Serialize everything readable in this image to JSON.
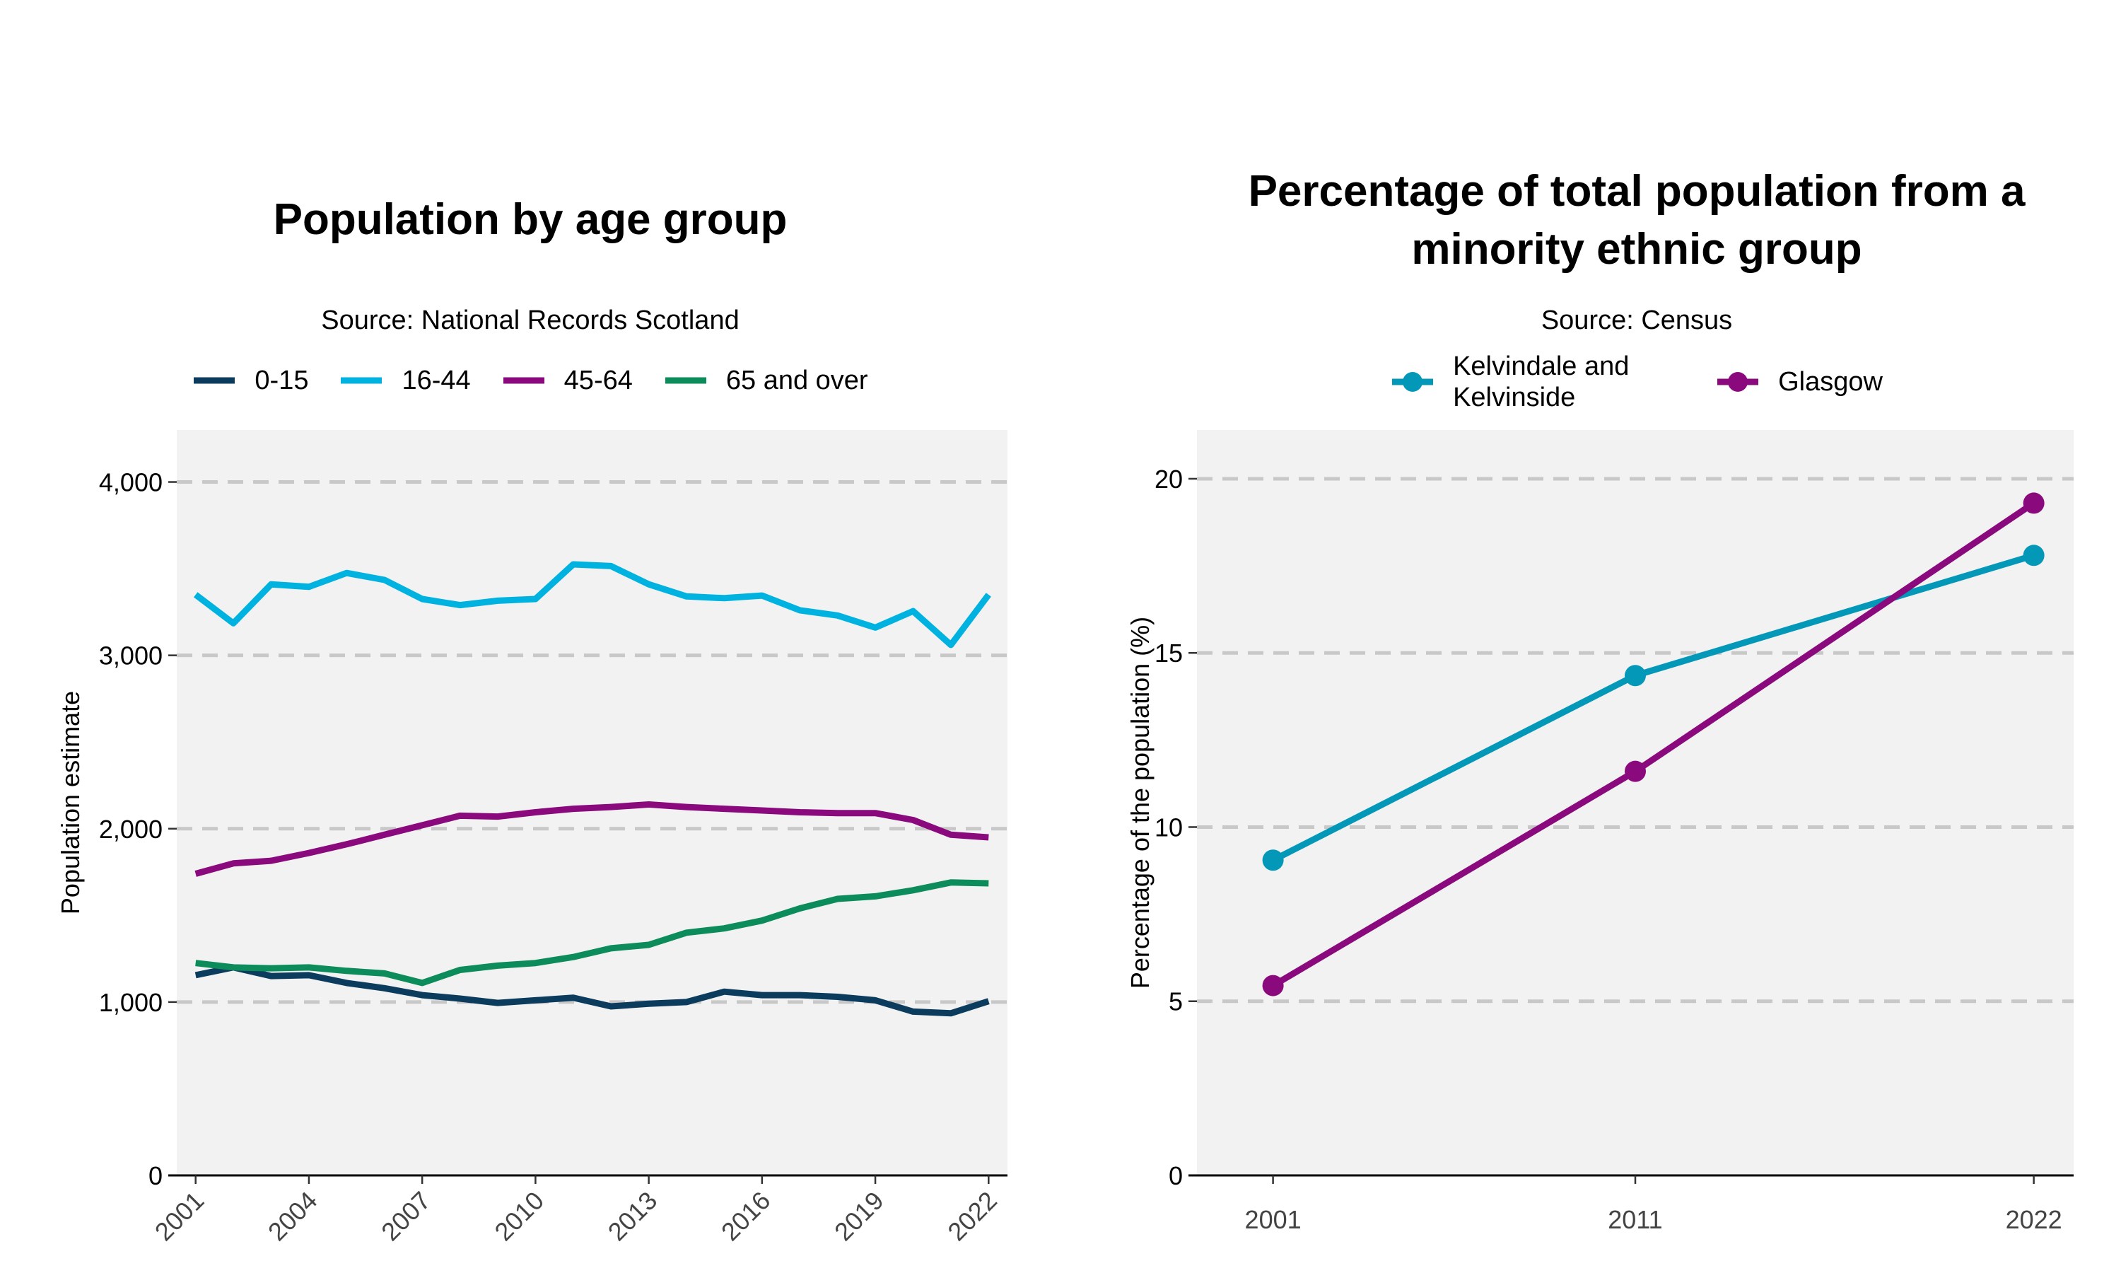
{
  "chart_data": [
    {
      "type": "line",
      "title": "Population by age group",
      "subtitle": "Source: National Records Scotland",
      "xlabel": "",
      "ylabel": "Population estimate",
      "ylim": [
        0,
        4300
      ],
      "xlim": [
        2000.5,
        2022.5
      ],
      "yticks": [
        0,
        1000,
        2000,
        3000,
        4000
      ],
      "ytick_labels": [
        "0",
        "1,000",
        "2,000",
        "3,000",
        "4,000"
      ],
      "xticks": [
        2001,
        2004,
        2007,
        2010,
        2013,
        2016,
        2019,
        2022
      ],
      "xtick_labels": [
        "2001",
        "2004",
        "2007",
        "2010",
        "2013",
        "2016",
        "2019",
        "2022"
      ],
      "grid": "horizontal dashed",
      "legend_position": "top",
      "x": [
        2001,
        2002,
        2003,
        2004,
        2005,
        2006,
        2007,
        2008,
        2009,
        2010,
        2011,
        2012,
        2013,
        2014,
        2015,
        2016,
        2017,
        2018,
        2019,
        2020,
        2021,
        2022
      ],
      "series": [
        {
          "name": "0-15",
          "color": "#0b3c5d",
          "values": [
            1155,
            1200,
            1150,
            1155,
            1110,
            1080,
            1040,
            1020,
            995,
            1010,
            1025,
            975,
            990,
            1000,
            1060,
            1040,
            1040,
            1030,
            1010,
            945,
            935,
            1005
          ]
        },
        {
          "name": "16-44",
          "color": "#00b2df",
          "values": [
            3350,
            3185,
            3410,
            3395,
            3475,
            3435,
            3325,
            3290,
            3315,
            3325,
            3525,
            3515,
            3410,
            3340,
            3330,
            3345,
            3260,
            3230,
            3160,
            3255,
            3060,
            3350
          ]
        },
        {
          "name": "45-64",
          "color": "#8a0a7d",
          "values": [
            1740,
            1800,
            1815,
            1860,
            1910,
            1965,
            2020,
            2075,
            2070,
            2095,
            2115,
            2125,
            2140,
            2125,
            2115,
            2105,
            2095,
            2090,
            2090,
            2050,
            1965,
            1950
          ]
        },
        {
          "name": "65 and over",
          "color": "#0b8c5a",
          "values": [
            1225,
            1200,
            1195,
            1200,
            1180,
            1165,
            1110,
            1185,
            1210,
            1225,
            1260,
            1310,
            1330,
            1400,
            1425,
            1470,
            1540,
            1595,
            1610,
            1645,
            1690,
            1685
          ]
        }
      ]
    },
    {
      "type": "line",
      "title": "Percentage of total population from a minority ethnic group",
      "subtitle": "Source: Census",
      "xlabel": "",
      "ylabel": "Percentage of the population (%)",
      "ylim": [
        0,
        21.4
      ],
      "xlim": [
        1998.9,
        2023.1
      ],
      "yticks": [
        0,
        5,
        10,
        15,
        20
      ],
      "ytick_labels": [
        "0",
        "5",
        "10",
        "15",
        "20"
      ],
      "xticks": [
        2001,
        2011,
        2022
      ],
      "xtick_labels": [
        "2001",
        "2011",
        "2022"
      ],
      "grid": "horizontal dashed",
      "legend_position": "top",
      "x": [
        2001,
        2011,
        2022
      ],
      "series": [
        {
          "name": "Kelvindale and Kelvinside",
          "color": "#0397b8",
          "values": [
            9.05,
            14.35,
            17.8
          ]
        },
        {
          "name": "Glasgow",
          "color": "#8a0a7d",
          "values": [
            5.45,
            11.6,
            19.3
          ]
        }
      ]
    }
  ]
}
